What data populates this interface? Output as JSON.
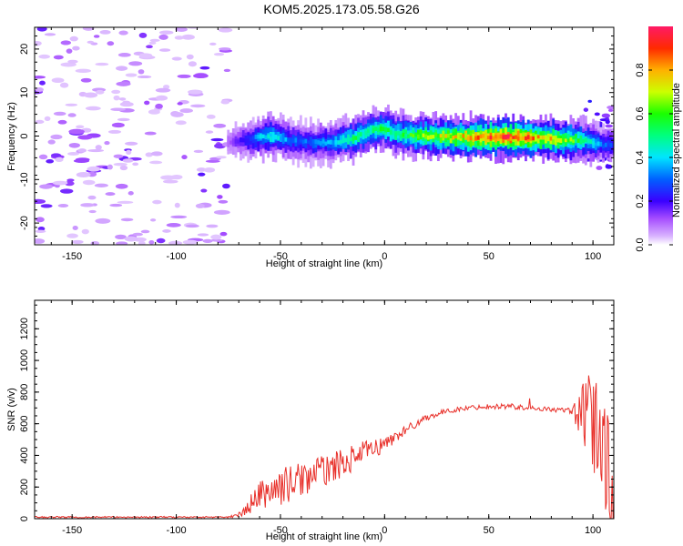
{
  "figure": {
    "title": "KOM5.2025.173.05.58.G26"
  },
  "chart_data": [
    {
      "type": "heatmap",
      "xlabel": "Height of straight line (km)",
      "ylabel": "Frequency (Hz)",
      "xlim": [
        -168,
        110
      ],
      "ylim": [
        -25,
        25
      ],
      "xticks": [
        -150,
        -100,
        -50,
        0,
        50,
        100
      ],
      "xtick_labels": [
        "-150",
        "-100",
        "-50",
        "0",
        "50",
        "100"
      ],
      "yticks": [
        -20,
        -10,
        0,
        10,
        20
      ],
      "ytick_labels": [
        "-20",
        "-10",
        "0",
        "10",
        "20"
      ],
      "colorbar": {
        "label": "Normalized spectral amplitude",
        "range": [
          0,
          1
        ],
        "ticks": [
          0,
          0.2,
          0.4,
          0.6,
          0.8
        ],
        "tick_labels": [
          "0.0",
          "0.2",
          "0.4",
          "0.6",
          "0.8"
        ],
        "colormap": [
          "#ffffff",
          "#d9b3ff",
          "#8b00ff",
          "#0000ff",
          "#00ffff",
          "#00ff00",
          "#ffff00",
          "#ff8000",
          "#ff0000",
          "#ff1a66"
        ]
      },
      "ridge": {
        "description_points_x": [
          -75,
          -65,
          -55,
          -45,
          -35,
          -25,
          -15,
          -5,
          0,
          5,
          15,
          25,
          35,
          45,
          55,
          65,
          75,
          85,
          95,
          105,
          110
        ],
        "frequency_hz": [
          -1.5,
          -0.8,
          0.2,
          -1.0,
          -1.5,
          -1.5,
          -0.5,
          1.5,
          1.8,
          0.5,
          0.0,
          0.0,
          -0.2,
          -0.3,
          -0.3,
          -0.3,
          -0.5,
          -0.8,
          -1.0,
          -2.0,
          -2.0
        ],
        "amplitude": [
          0.1,
          0.25,
          0.45,
          0.3,
          0.3,
          0.35,
          0.5,
          0.5,
          0.55,
          0.5,
          0.6,
          0.65,
          0.75,
          0.85,
          0.9,
          0.9,
          0.75,
          0.7,
          0.5,
          0.3,
          0.25
        ]
      },
      "noise_region_x": [
        -168,
        -75
      ]
    },
    {
      "type": "line",
      "xlabel": "Height of straight line (km)",
      "ylabel": "SNR (v/v)",
      "xlim": [
        -168,
        110
      ],
      "ylim": [
        0,
        1380
      ],
      "xticks": [
        -150,
        -100,
        -50,
        0,
        50,
        100
      ],
      "xtick_labels": [
        "-150",
        "-100",
        "-50",
        "0",
        "50",
        "100"
      ],
      "yticks": [
        0,
        200,
        400,
        600,
        800,
        1000,
        1200
      ],
      "ytick_labels": [
        "0",
        "200",
        "400",
        "600",
        "800",
        "1000",
        "1200"
      ],
      "color": "#e8302a",
      "envelope": {
        "x": [
          -168,
          -75,
          -70,
          -65,
          -60,
          -50,
          -40,
          -30,
          -20,
          -10,
          0,
          10,
          20,
          30,
          40,
          50,
          60,
          70,
          80,
          90,
          95,
          100,
          105,
          110
        ],
        "y": [
          10,
          10,
          20,
          80,
          150,
          200,
          250,
          300,
          350,
          420,
          470,
          560,
          640,
          680,
          700,
          710,
          710,
          700,
          690,
          680,
          650,
          600,
          450,
          300
        ],
        "noise_amplitude": [
          5,
          5,
          20,
          60,
          90,
          120,
          110,
          100,
          90,
          70,
          50,
          30,
          20,
          15,
          15,
          15,
          20,
          15,
          15,
          20,
          200,
          350,
          400,
          500
        ]
      }
    }
  ]
}
